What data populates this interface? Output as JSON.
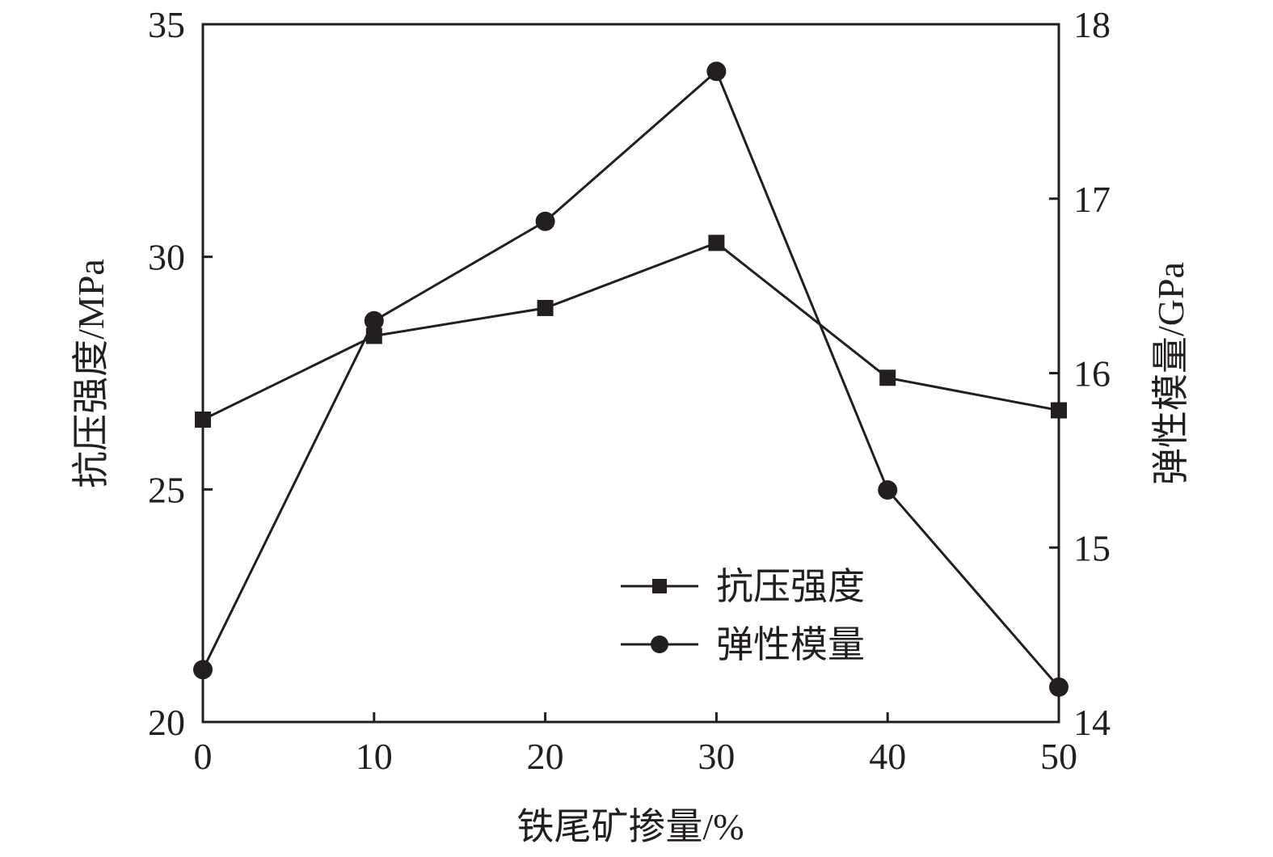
{
  "chart_data": {
    "type": "line",
    "x": [
      0,
      10,
      20,
      30,
      40,
      50
    ],
    "xlabel": "铁尾矿掺量/%",
    "ylabel_left": "抗压强度/MPa",
    "ylabel_right": "弹性模量/GPa",
    "xlim": [
      0,
      50
    ],
    "ylim_left": [
      20,
      35
    ],
    "ylim_right": [
      14,
      18
    ],
    "x_ticks": [
      "0",
      "10",
      "20",
      "30",
      "40",
      "50"
    ],
    "y_ticks_left": [
      "20",
      "25",
      "30",
      "35"
    ],
    "y_ticks_right": [
      "14",
      "15",
      "16",
      "17",
      "18"
    ],
    "grid": false,
    "legend_position": "lower-center",
    "series": [
      {
        "name": "抗压强度",
        "axis": "left",
        "marker": "square",
        "values": [
          26.5,
          28.3,
          28.9,
          30.3,
          27.4,
          26.7
        ]
      },
      {
        "name": "弹性模量",
        "axis": "right",
        "marker": "circle",
        "values": [
          14.3,
          16.3,
          16.87,
          17.73,
          15.33,
          14.2
        ]
      }
    ],
    "colors": {
      "line": "#231f20",
      "marker": "#231f20"
    }
  }
}
